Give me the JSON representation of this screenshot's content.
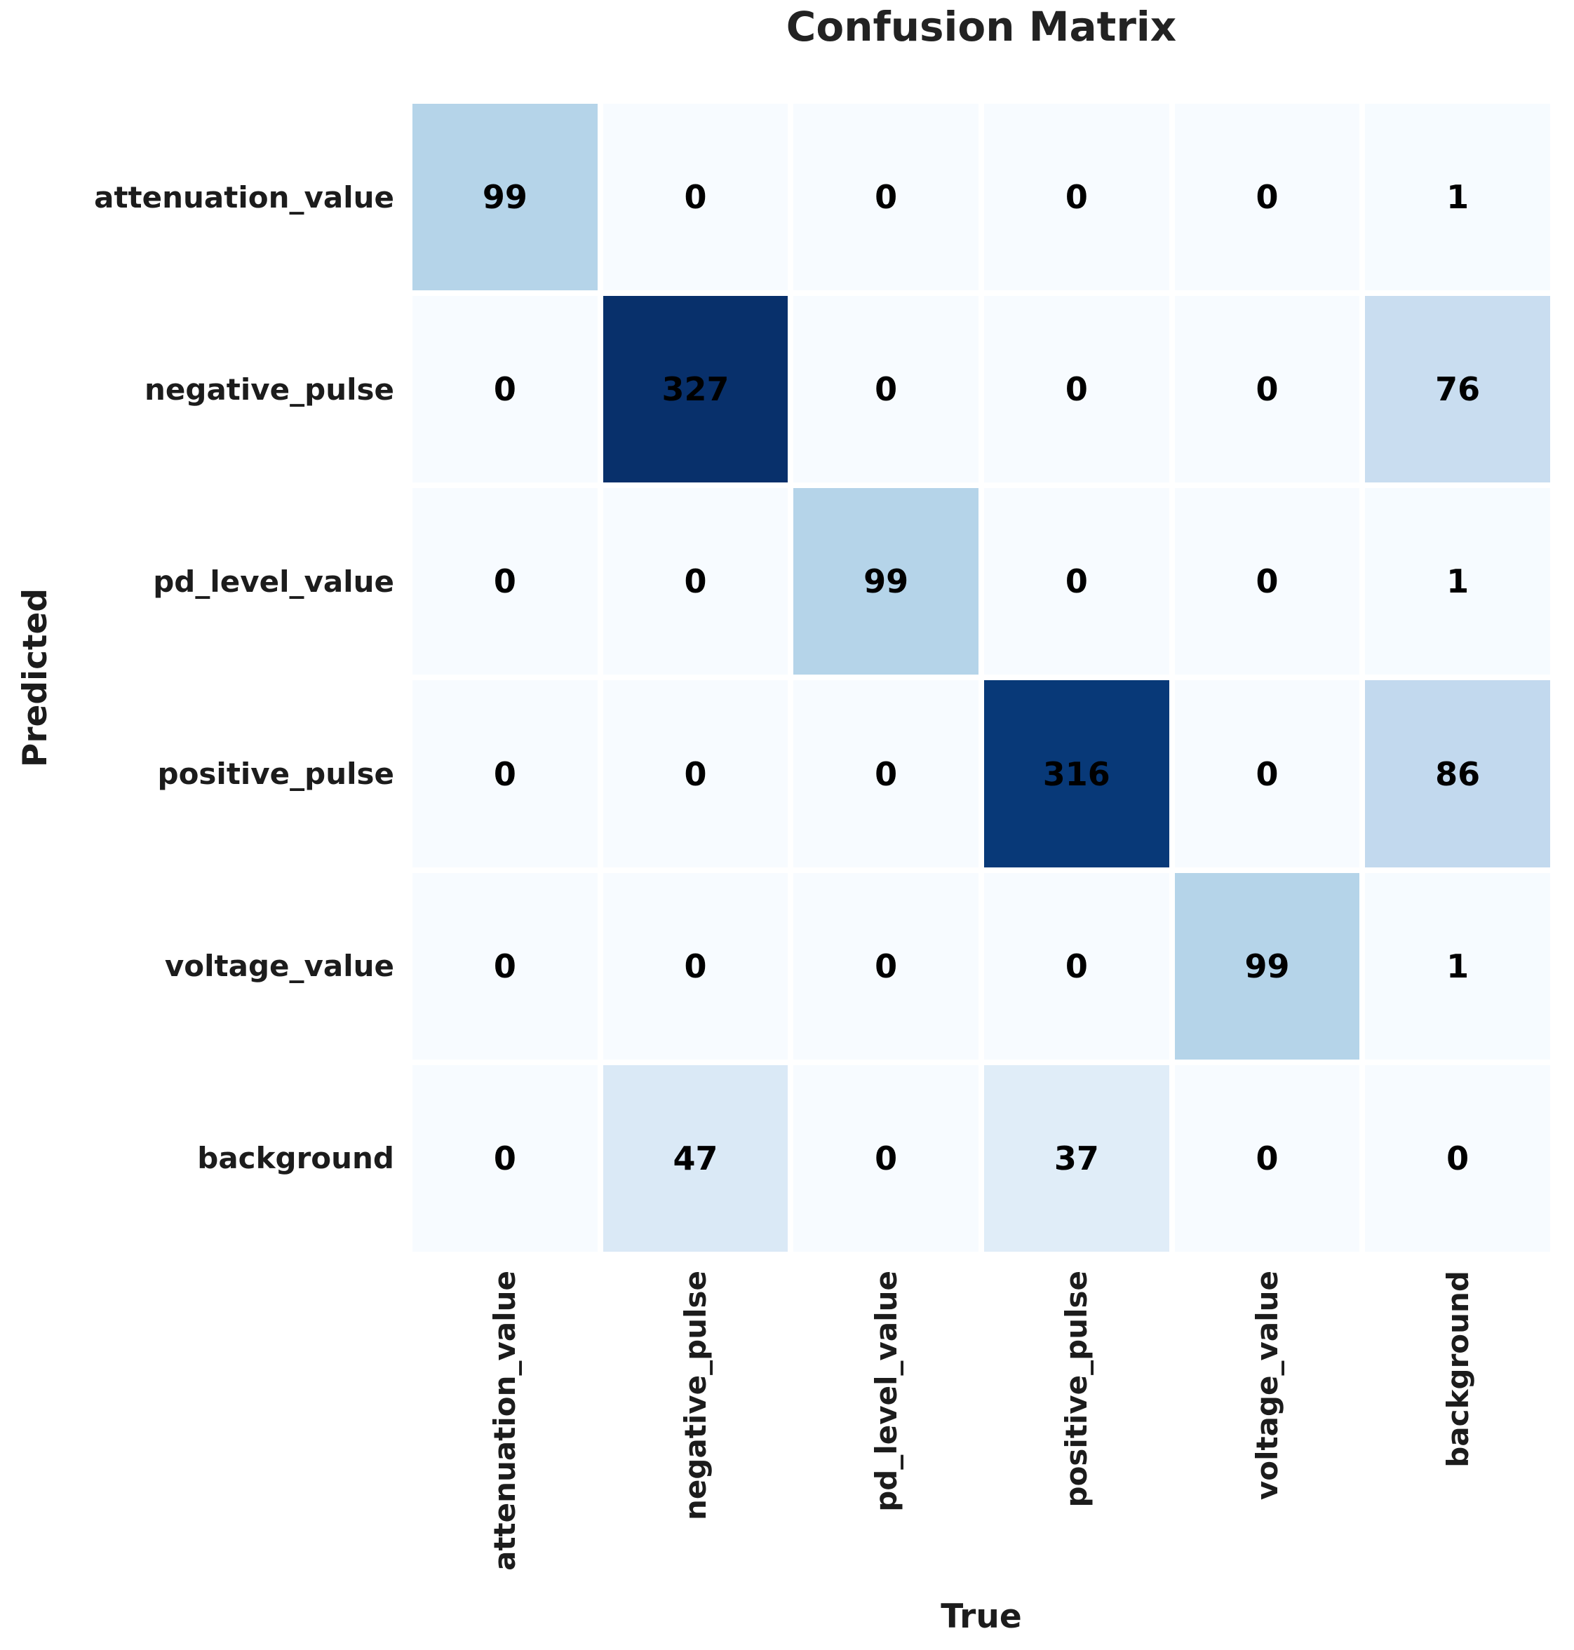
{
  "title": "Confusion Matrix",
  "axes": {
    "x_label": "True",
    "y_label": "Predicted"
  },
  "chart_data": {
    "type": "heatmap",
    "title": "Confusion Matrix",
    "xlabel": "True",
    "ylabel": "Predicted",
    "x_tick_labels": [
      "attenuation_value",
      "negative_pulse",
      "pd_level_value",
      "positive_pulse",
      "voltage_value",
      "background"
    ],
    "y_tick_labels": [
      "attenuation_value",
      "negative_pulse",
      "pd_level_value",
      "positive_pulse",
      "voltage_value",
      "background"
    ],
    "matrix": [
      [
        99,
        0,
        0,
        0,
        0,
        1
      ],
      [
        0,
        327,
        0,
        0,
        0,
        76
      ],
      [
        0,
        0,
        99,
        0,
        0,
        1
      ],
      [
        0,
        0,
        0,
        316,
        0,
        86
      ],
      [
        0,
        0,
        0,
        0,
        99,
        1
      ],
      [
        0,
        47,
        0,
        37,
        0,
        0
      ]
    ],
    "colormap": "Blues",
    "value_range": [
      0,
      327
    ],
    "annotation_color": "#000000",
    "grid_line_color": "#ffffff",
    "legend": "none"
  }
}
